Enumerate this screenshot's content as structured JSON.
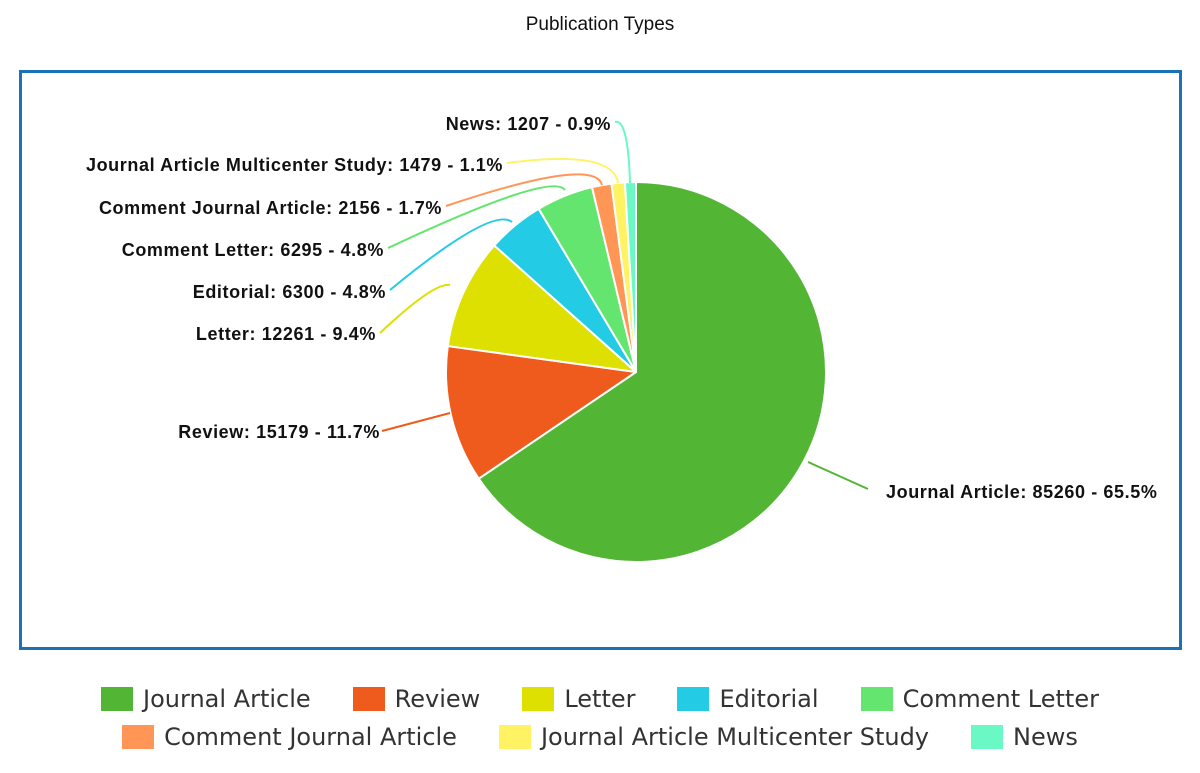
{
  "chart_data": {
    "type": "pie",
    "title": "Publication Types",
    "slices": [
      {
        "name": "Journal Article",
        "value": 85260,
        "percent": "65.5%",
        "color": "#52b534",
        "label": "Journal Article: 85260 - 65.5%"
      },
      {
        "name": "Review",
        "value": 15179,
        "percent": "11.7%",
        "color": "#ef5b1c",
        "label": "Review: 15179 - 11.7%"
      },
      {
        "name": "Letter",
        "value": 12261,
        "percent": "9.4%",
        "color": "#dde000",
        "label": "Letter: 12261 - 9.4%"
      },
      {
        "name": "Editorial",
        "value": 6300,
        "percent": "4.8%",
        "color": "#23cbe5",
        "label": "Editorial: 6300 - 4.8%"
      },
      {
        "name": "Comment Letter",
        "value": 6295,
        "percent": "4.8%",
        "color": "#64e56f",
        "label": "Comment Letter: 6295 - 4.8%"
      },
      {
        "name": "Comment Journal Article",
        "value": 2156,
        "percent": "1.7%",
        "color": "#ff9655",
        "label": "Comment Journal Article: 2156 - 1.7%"
      },
      {
        "name": "Journal Article Multicenter Study",
        "value": 1479,
        "percent": "1.1%",
        "color": "#fff263",
        "label": "Journal Article Multicenter Study: 1479 - 1.1%"
      },
      {
        "name": "News",
        "value": 1207,
        "percent": "0.9%",
        "color": "#6af9c4",
        "label": "News: 1207 - 0.9%"
      }
    ],
    "legend_position": "bottom",
    "legend": [
      [
        "Journal Article",
        "Review",
        "Letter",
        "Editorial",
        "Comment Letter"
      ],
      [
        "Comment Journal Article",
        "Journal Article Multicenter Study",
        "News"
      ]
    ]
  }
}
